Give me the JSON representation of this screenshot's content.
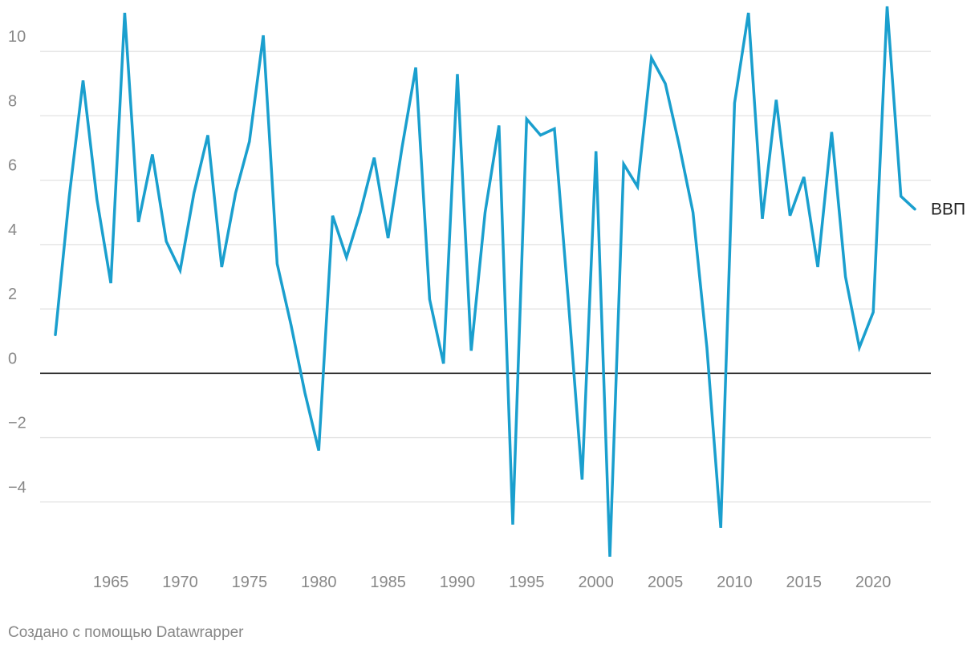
{
  "credit": "Создано с помощью Datawrapper",
  "colors": {
    "line": "#1a9fce",
    "grid": "#e2e2e2",
    "zero": "#222222",
    "tick": "#888888"
  },
  "chart_data": {
    "type": "line",
    "title": "",
    "xlabel": "",
    "ylabel": "",
    "xlim": [
      1961,
      2023
    ],
    "ylim": [
      -6,
      11.6
    ],
    "y_ticks": [
      -4,
      -2,
      0,
      2,
      4,
      6,
      8,
      10
    ],
    "y_tick_labels": [
      "−4",
      "−2",
      "0",
      "2",
      "4",
      "6",
      "8",
      "10"
    ],
    "x_ticks": [
      1965,
      1970,
      1975,
      1980,
      1985,
      1990,
      1995,
      2000,
      2005,
      2010,
      2015,
      2020
    ],
    "x_tick_labels": [
      "1965",
      "1970",
      "1975",
      "1980",
      "1985",
      "1990",
      "1995",
      "2000",
      "2005",
      "2010",
      "2015",
      "2020"
    ],
    "grid": true,
    "series": [
      {
        "name": "ВВП",
        "x": [
          1961,
          1962,
          1963,
          1964,
          1965,
          1966,
          1967,
          1968,
          1969,
          1970,
          1971,
          1972,
          1973,
          1974,
          1975,
          1976,
          1977,
          1978,
          1979,
          1980,
          1981,
          1982,
          1983,
          1984,
          1985,
          1986,
          1987,
          1988,
          1989,
          1990,
          1991,
          1992,
          1993,
          1994,
          1995,
          1996,
          1997,
          1998,
          1999,
          2000,
          2001,
          2002,
          2003,
          2004,
          2005,
          2006,
          2007,
          2008,
          2009,
          2010,
          2011,
          2012,
          2013,
          2014,
          2015,
          2016,
          2017,
          2018,
          2019,
          2020,
          2021,
          2022,
          2023
        ],
        "values": [
          1.2,
          5.5,
          9.1,
          5.4,
          2.8,
          11.2,
          4.7,
          6.8,
          4.1,
          3.2,
          5.6,
          7.4,
          3.3,
          5.6,
          7.2,
          10.5,
          3.4,
          1.5,
          -0.6,
          -2.4,
          4.9,
          3.6,
          5.0,
          6.7,
          4.2,
          7.0,
          9.5,
          2.3,
          0.3,
          9.3,
          0.7,
          5.0,
          7.7,
          -4.7,
          7.9,
          7.4,
          7.6,
          2.3,
          -3.3,
          6.9,
          -5.7,
          6.5,
          5.8,
          9.8,
          9.0,
          7.1,
          5.0,
          0.8,
          -4.8,
          8.4,
          11.2,
          4.8,
          8.5,
          4.9,
          6.1,
          3.3,
          7.5,
          3.0,
          0.8,
          1.9,
          11.4,
          5.5,
          5.1
        ]
      }
    ]
  }
}
